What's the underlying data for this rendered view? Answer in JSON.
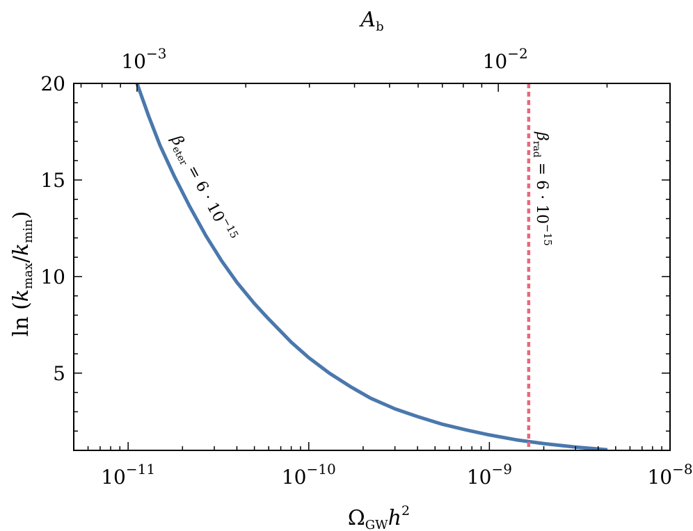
{
  "chart_data": {
    "type": "line",
    "xscale": "log",
    "xlim": [
      5e-12,
      1e-08
    ],
    "ylim": [
      1,
      20
    ],
    "xlabel": {
      "main": "Ω",
      "sub": "GW",
      "tail": "h",
      "sup": "2"
    },
    "ylabel": {
      "prefix": "ln (",
      "k1": "k",
      "sub1": "max",
      "slash": "/",
      "k2": "k",
      "sub2": "min",
      "suffix": ")"
    },
    "top_axis": {
      "label": {
        "main": "A",
        "sub": "b"
      },
      "ticks": [
        {
          "base": "10",
          "exp": "−3",
          "at_x": 1.12e-11
        },
        {
          "base": "10",
          "exp": "−2",
          "at_x": 1.12e-09
        }
      ]
    },
    "x_ticks": [
      {
        "value": 1e-11,
        "base": "10",
        "exp": "−11"
      },
      {
        "value": 1e-10,
        "base": "10",
        "exp": "−10"
      },
      {
        "value": 1e-09,
        "base": "10",
        "exp": "−9"
      },
      {
        "value": 1e-08,
        "base": "10",
        "exp": "−8"
      }
    ],
    "y_ticks": [
      {
        "value": 5,
        "label": "5"
      },
      {
        "value": 10,
        "label": "10"
      },
      {
        "value": 15,
        "label": "15"
      },
      {
        "value": 20,
        "label": "20"
      }
    ],
    "series": [
      {
        "kind": "curve",
        "color": "#4a78ad",
        "x": [
          1.12e-11,
          1.3e-11,
          1.5e-11,
          1.8e-11,
          2.2e-11,
          2.7e-11,
          3.3e-11,
          4e-11,
          5e-11,
          6e-11,
          8e-11,
          1e-10,
          1.3e-10,
          1.7e-10,
          2.2e-10,
          3e-10,
          4e-10,
          5.5e-10,
          7.5e-10,
          1e-09,
          1.4e-09,
          2e-09,
          3e-09,
          4.5e-09
        ],
        "y": [
          20,
          18.3,
          16.8,
          15.2,
          13.6,
          12.1,
          10.8,
          9.7,
          8.6,
          7.8,
          6.6,
          5.8,
          5.0,
          4.3,
          3.7,
          3.15,
          2.75,
          2.35,
          2.05,
          1.8,
          1.55,
          1.35,
          1.17,
          1.03
        ],
        "annotation": {
          "greek": "β",
          "sub": "eter",
          "text": " = 6 · 10",
          "sup": "−15"
        }
      },
      {
        "kind": "vline",
        "color": "#e8697d",
        "x": 1.65e-09,
        "annotation": {
          "greek": "β",
          "sub": "rad",
          "text": " = 6 · 10",
          "sup": "−15"
        }
      }
    ]
  }
}
